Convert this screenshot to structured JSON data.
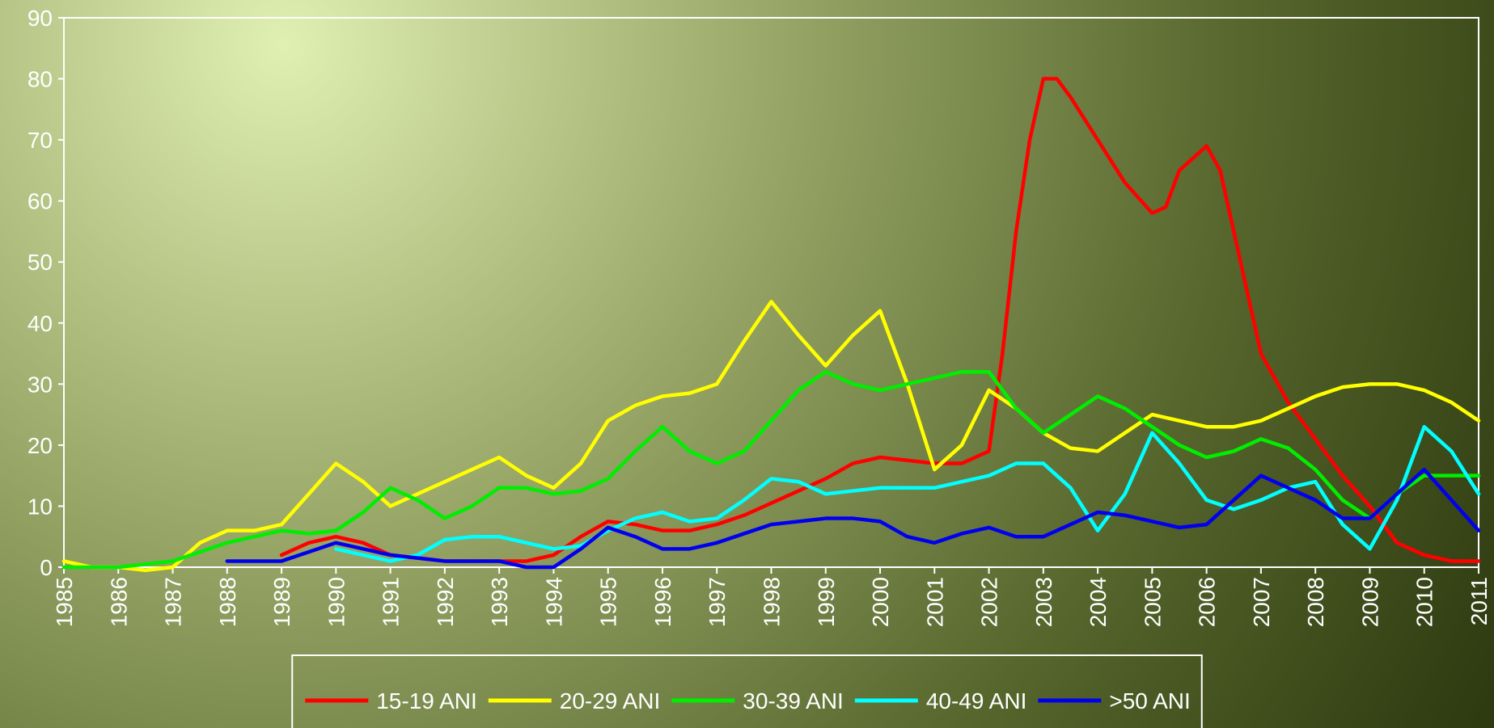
{
  "chart_data": {
    "type": "line",
    "legend": "bottom",
    "xlim": [
      1985,
      2011
    ],
    "xticks": [
      1985,
      1986,
      1987,
      1988,
      1989,
      1990,
      1991,
      1992,
      1993,
      1994,
      1995,
      1996,
      1997,
      1998,
      1999,
      2000,
      2001,
      2002,
      2003,
      2004,
      2005,
      2006,
      2007,
      2008,
      2009,
      2010,
      2011
    ],
    "ylim": [
      0,
      90
    ],
    "yticks": [
      0,
      10,
      20,
      30,
      40,
      50,
      60,
      70,
      80,
      90
    ],
    "series": [
      {
        "name": "15-19 ANI",
        "color": "#ff0000",
        "x": [
          1989,
          1989.5,
          1990,
          1990.5,
          1991,
          1991.5,
          1992,
          1992.5,
          1993,
          1993.5,
          1994,
          1994.5,
          1995,
          1995.5,
          1996,
          1996.5,
          1997,
          1997.5,
          1998,
          1998.5,
          1999,
          1999.5,
          2000,
          2000.5,
          2001,
          2001.5,
          2002,
          2002.25,
          2002.5,
          2002.75,
          2003,
          2003.25,
          2003.5,
          2004,
          2004.5,
          2005,
          2005.25,
          2005.5,
          2006,
          2006.25,
          2006.5,
          2007,
          2007.5,
          2008,
          2008.5,
          2009,
          2009.5,
          2010,
          2010.5,
          2011
        ],
        "values": [
          2,
          4,
          5,
          4,
          2,
          1.5,
          1,
          1,
          1,
          1,
          2,
          5,
          7.5,
          7,
          6,
          6,
          7,
          8.5,
          10.5,
          12.5,
          14.5,
          17,
          18,
          17.5,
          17,
          17,
          19,
          35,
          55,
          70,
          80,
          80,
          77,
          70,
          63,
          58,
          59,
          65,
          69,
          65,
          55,
          35,
          27,
          21,
          15,
          10,
          4,
          2,
          1,
          1
        ]
      },
      {
        "name": "20-29 ANI",
        "color": "#ffff00",
        "x": [
          1985,
          1985.5,
          1986,
          1986.5,
          1987,
          1987.5,
          1988,
          1988.5,
          1989,
          1989.5,
          1990,
          1990.5,
          1991,
          1991.5,
          1992,
          1992.5,
          1993,
          1993.5,
          1994,
          1994.5,
          1995,
          1995.5,
          1996,
          1996.5,
          1997,
          1997.5,
          1998,
          1998.5,
          1999,
          1999.5,
          2000,
          2000.5,
          2001,
          2001.5,
          2002,
          2002.5,
          2003,
          2003.5,
          2004,
          2004.5,
          2005,
          2005.5,
          2006,
          2006.5,
          2007,
          2007.5,
          2008,
          2008.5,
          2009,
          2009.5,
          2010,
          2010.5,
          2011
        ],
        "values": [
          1,
          0,
          0,
          -0.5,
          0,
          4,
          6,
          6,
          7,
          12,
          17,
          14,
          10,
          12,
          14,
          16,
          18,
          15,
          13,
          17,
          24,
          26.5,
          28,
          28.5,
          30,
          37,
          43.5,
          38,
          33,
          38,
          42,
          30,
          16,
          20,
          29,
          26,
          22,
          19.5,
          19,
          22,
          25,
          24,
          23,
          23,
          24,
          26,
          28,
          29.5,
          30,
          30,
          29,
          27,
          24
        ]
      },
      {
        "name": "30-39 ANI",
        "color": "#00ee00",
        "x": [
          1985,
          1986,
          1986.5,
          1987,
          1987.5,
          1988,
          1988.5,
          1989,
          1989.5,
          1990,
          1990.5,
          1991,
          1991.5,
          1992,
          1992.5,
          1993,
          1993.5,
          1994,
          1994.5,
          1995,
          1995.5,
          1996,
          1996.5,
          1997,
          1997.5,
          1998,
          1998.5,
          1999,
          1999.5,
          2000,
          2000.5,
          2001,
          2001.5,
          2002,
          2002.5,
          2003,
          2003.5,
          2004,
          2004.5,
          2005,
          2005.5,
          2006,
          2006.5,
          2007,
          2007.5,
          2008,
          2008.5,
          2009,
          2009.5,
          2010,
          2010.5,
          2011
        ],
        "values": [
          0,
          0,
          0.5,
          1,
          2.5,
          4,
          5,
          6,
          5.5,
          6,
          9,
          13,
          11,
          8,
          10,
          13,
          13,
          12,
          12.5,
          14.5,
          19,
          23,
          19,
          17,
          19,
          24,
          29,
          32,
          30,
          29,
          30,
          31,
          32,
          32,
          26,
          22,
          25,
          28,
          26,
          23,
          20,
          18,
          19,
          21,
          19.5,
          16,
          11,
          8,
          12,
          15,
          15,
          15
        ]
      },
      {
        "name": "40-49 ANI",
        "color": "#00ffff",
        "x": [
          1990,
          1990.5,
          1991,
          1991.5,
          1992,
          1992.5,
          1993,
          1993.5,
          1994,
          1994.5,
          1995,
          1995.5,
          1996,
          1996.5,
          1997,
          1997.5,
          1998,
          1998.5,
          1999,
          1999.5,
          2000,
          2000.5,
          2001,
          2001.5,
          2002,
          2002.5,
          2003,
          2003.5,
          2004,
          2004.5,
          2005,
          2005.5,
          2006,
          2006.5,
          2007,
          2007.5,
          2008,
          2008.5,
          2009,
          2009.5,
          2010,
          2010.5,
          2011
        ],
        "values": [
          3,
          2,
          1,
          2,
          4.5,
          5,
          5,
          4,
          3,
          3.5,
          6,
          8,
          9,
          7.5,
          8,
          11,
          14.5,
          14,
          12,
          12.5,
          13,
          13,
          13,
          14,
          15,
          17,
          17,
          13,
          6,
          12,
          22,
          17,
          11,
          9.5,
          11,
          13,
          14,
          7,
          3,
          11,
          23,
          19,
          12
        ]
      },
      {
        "name": ">50 ANI",
        "color": "#0000ee",
        "x": [
          1988,
          1988.5,
          1989,
          1989.5,
          1990,
          1990.5,
          1991,
          1991.5,
          1992,
          1992.5,
          1993,
          1993.5,
          1994,
          1994.5,
          1995,
          1995.5,
          1996,
          1996.5,
          1997,
          1997.5,
          1998,
          1998.5,
          1999,
          1999.5,
          2000,
          2000.5,
          2001,
          2001.5,
          2002,
          2002.5,
          2003,
          2003.5,
          2004,
          2004.5,
          2005,
          2005.5,
          2006,
          2006.5,
          2007,
          2007.5,
          2008,
          2008.5,
          2009,
          2009.5,
          2010,
          2010.5,
          2011
        ],
        "values": [
          1,
          1,
          1,
          2.5,
          4,
          3,
          2,
          1.5,
          1,
          1,
          1,
          0,
          0,
          3,
          6.5,
          5,
          3,
          3,
          4,
          5.5,
          7,
          7.5,
          8,
          8,
          7.5,
          5,
          4,
          5.5,
          6.5,
          5,
          5,
          7,
          9,
          8.5,
          7.5,
          6.5,
          7,
          11,
          15,
          13,
          11,
          8,
          8,
          12,
          16,
          11,
          6
        ]
      }
    ]
  }
}
